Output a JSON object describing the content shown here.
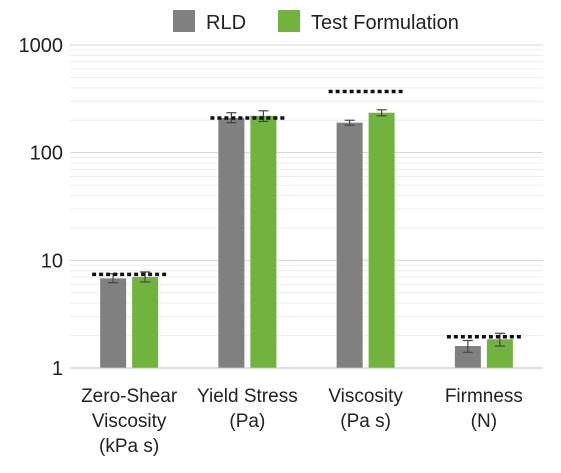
{
  "chart_data": {
    "type": "bar",
    "y_scale": "log",
    "ylim": [
      1,
      1000
    ],
    "yticks": [
      {
        "value": 1,
        "label": "1"
      },
      {
        "value": 10,
        "label": "10"
      },
      {
        "value": 100,
        "label": "100"
      },
      {
        "value": 1000,
        "label": "1000"
      }
    ],
    "grid": "horizontal minor gridlines",
    "legend_position": "top",
    "categories": [
      {
        "lines": [
          "Zero-Shear",
          "Viscosity",
          "(kPa s)"
        ]
      },
      {
        "lines": [
          "Yield Stress",
          "(Pa)"
        ]
      },
      {
        "lines": [
          "Viscosity",
          "(Pa s)"
        ]
      },
      {
        "lines": [
          "Firmness",
          "(N)"
        ]
      }
    ],
    "series": [
      {
        "name": "RLD",
        "color": "#808080",
        "values": [
          6.8,
          210,
          190,
          1.6
        ],
        "error": [
          [
            6.2,
            7.5
          ],
          [
            190,
            235
          ],
          [
            180,
            200
          ],
          [
            1.4,
            1.8
          ]
        ]
      },
      {
        "name": "Test Formulation",
        "color": "#72b340",
        "values": [
          7.0,
          220,
          235,
          1.85
        ],
        "error": [
          [
            6.3,
            7.8
          ],
          [
            195,
            245
          ],
          [
            220,
            250
          ],
          [
            1.6,
            2.1
          ]
        ]
      }
    ],
    "reference_lines": [
      7.4,
      210,
      370,
      1.95
    ]
  }
}
